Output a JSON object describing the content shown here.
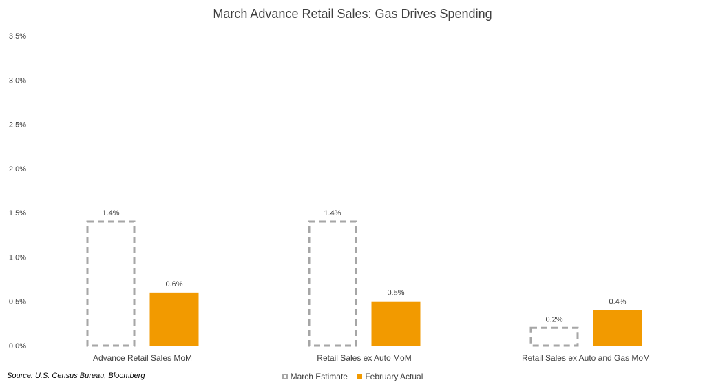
{
  "chart_data": {
    "type": "bar",
    "title": "March Advance Retail Sales: Gas Drives Spending",
    "categories": [
      "Advance Retail Sales MoM",
      "Retail Sales ex Auto MoM",
      "Retail Sales ex Auto and Gas MoM"
    ],
    "series": [
      {
        "name": "March Estimate",
        "values": [
          1.4,
          1.4,
          0.2
        ],
        "labels": [
          "1.4%",
          "1.4%",
          "0.2%"
        ],
        "color": "#a6a6a6",
        "style": "dashed-outline"
      },
      {
        "name": "February Actual",
        "values": [
          0.6,
          0.5,
          0.4
        ],
        "labels": [
          "0.6%",
          "0.5%",
          "0.4%"
        ],
        "color": "#f29a00",
        "style": "solid"
      }
    ],
    "yticks": [
      "0.0%",
      "0.5%",
      "1.0%",
      "1.5%",
      "2.0%",
      "2.5%",
      "3.0%",
      "3.5%"
    ],
    "ylim": [
      0,
      3.5
    ],
    "xlabel": "",
    "ylabel": "",
    "grid": false,
    "legend": "bottom-center"
  },
  "source_note": "Source: U.S. Census Bureau, Bloomberg"
}
